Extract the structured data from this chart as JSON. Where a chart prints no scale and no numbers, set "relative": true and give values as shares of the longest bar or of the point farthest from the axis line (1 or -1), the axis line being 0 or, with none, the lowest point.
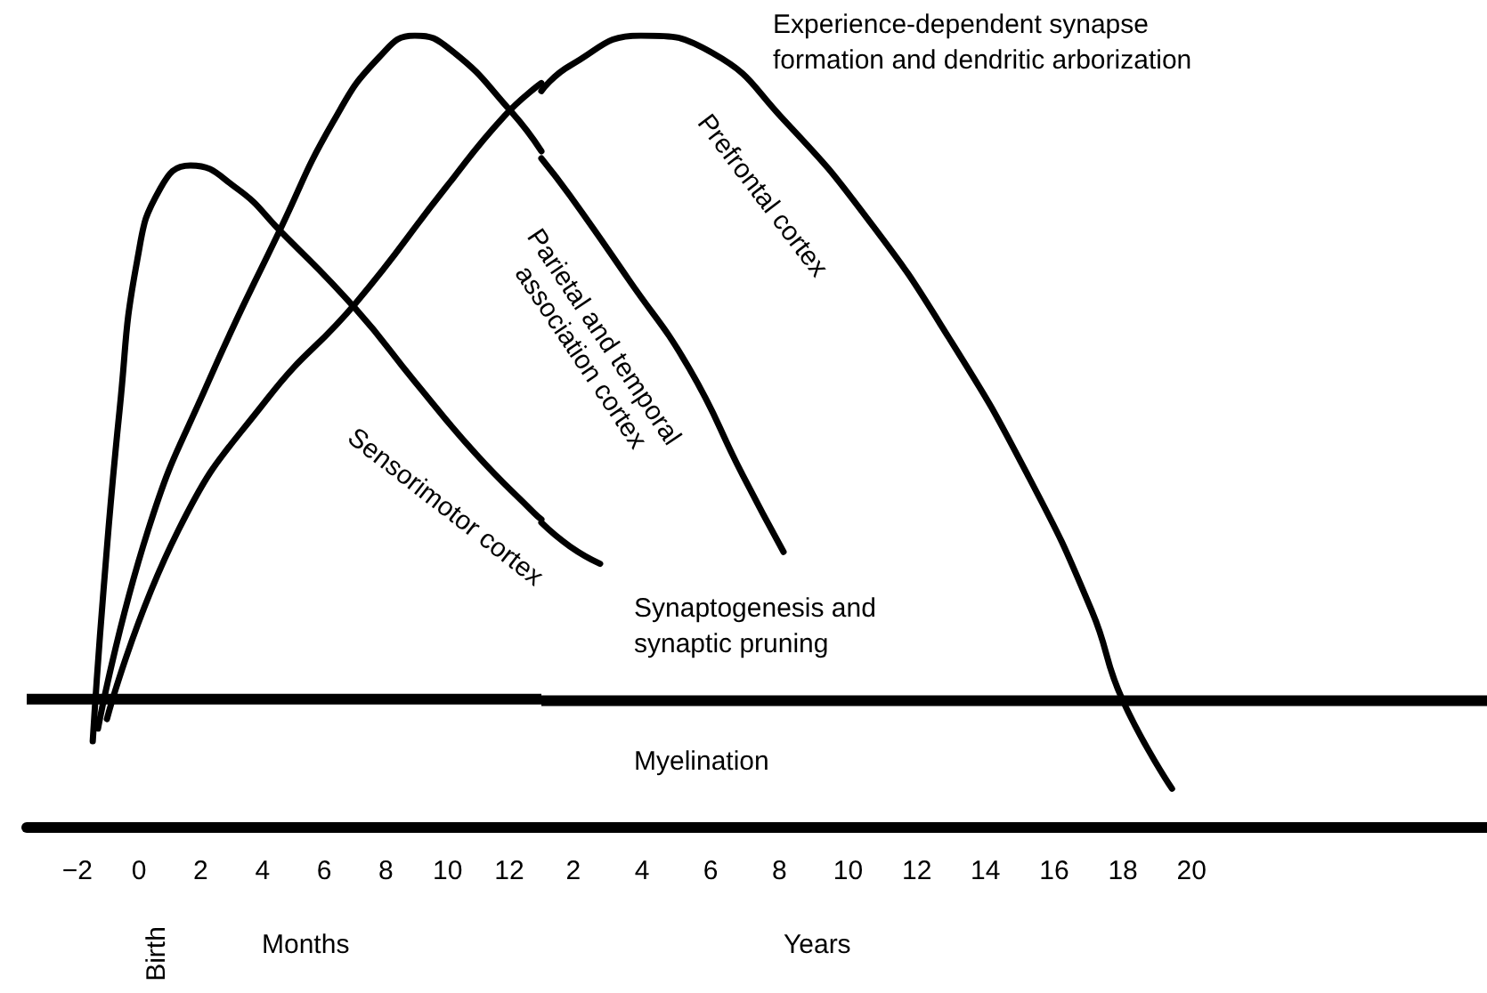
{
  "chart_data": [
    {
      "type": "line",
      "relative": true,
      "marker": "none",
      "line_style": "solid",
      "annotations": [
        "Birth",
        "Months"
      ],
      "xlim": [
        -3.64,
        13.04
      ],
      "xticks": [
        {
          "value": -2,
          "label": "−2"
        },
        0,
        2,
        4,
        6,
        8,
        10,
        12
      ],
      "ref_lines": [
        {
          "axis": "y",
          "value": 0.162,
          "color": "#000000"
        }
      ],
      "series": [
        {
          "name": "Sensorimotor cortex",
          "color": "#000000",
          "x": [
            -1.5,
            -1.15,
            -0.63,
            -0.06,
            0.69,
            1.67,
            3.17,
            4.56,
            7.04,
            8.94,
            10.91,
            12.81,
            13.04
          ],
          "values": [
            0.109,
            0.3,
            0.527,
            0.716,
            0.807,
            0.836,
            0.807,
            0.754,
            0.654,
            0.563,
            0.472,
            0.397,
            0.389
          ]
        },
        {
          "color": "#000000",
          "x": [
            -1.33,
            0.29,
            2.25,
            4.56,
            6.29,
            7.79,
            8.94,
            10.1,
            12.06,
            13.04
          ],
          "values": [
            0.125,
            0.375,
            0.563,
            0.754,
            0.891,
            0.973,
            1.0,
            0.982,
            0.904,
            0.854
          ]
        },
        {
          "color": "#000000",
          "x": [
            -1.04,
            1.27,
            4.15,
            7.04,
            9.92,
            11.83,
            13.04
          ],
          "values": [
            0.137,
            0.375,
            0.541,
            0.663,
            0.807,
            0.898,
            0.94
          ]
        }
      ]
    },
    {
      "type": "line",
      "relative": true,
      "marker": "none",
      "line_style": "solid",
      "annotations": [
        "Experience-dependent synapse formation and dendritic arborization",
        "Synaptogenesis and synaptic pruning",
        "Myelination",
        "Years"
      ],
      "xlim": [
        1.07,
        28.6
      ],
      "xticks": [
        2,
        4,
        6,
        8,
        10,
        12,
        14,
        16,
        18,
        20
      ],
      "ref_lines": [
        {
          "axis": "y",
          "value": 0.16,
          "color": "#000000"
        }
      ],
      "series": [
        {
          "color": "#000000",
          "x": [
            1.07,
            1.9,
            2.78
          ],
          "values": [
            0.385,
            0.355,
            0.333
          ]
        },
        {
          "name": "Parietal and temporal association cortex",
          "color": "#000000",
          "x": [
            1.07,
            1.9,
            3.61,
            5.37,
            6.93,
            8.12
          ],
          "values": [
            0.845,
            0.798,
            0.692,
            0.58,
            0.445,
            0.348
          ]
        },
        {
          "name": "Prefrontal cortex",
          "color": "#000000",
          "x": [
            1.07,
            1.9,
            3.97,
            6.05,
            8.12,
            10.56,
            12.94,
            15.23,
            17.09,
            17.98,
            19.43
          ],
          "values": [
            0.93,
            0.962,
            1.0,
            0.978,
            0.894,
            0.769,
            0.618,
            0.445,
            0.274,
            0.162,
            0.049
          ]
        }
      ]
    }
  ]
}
